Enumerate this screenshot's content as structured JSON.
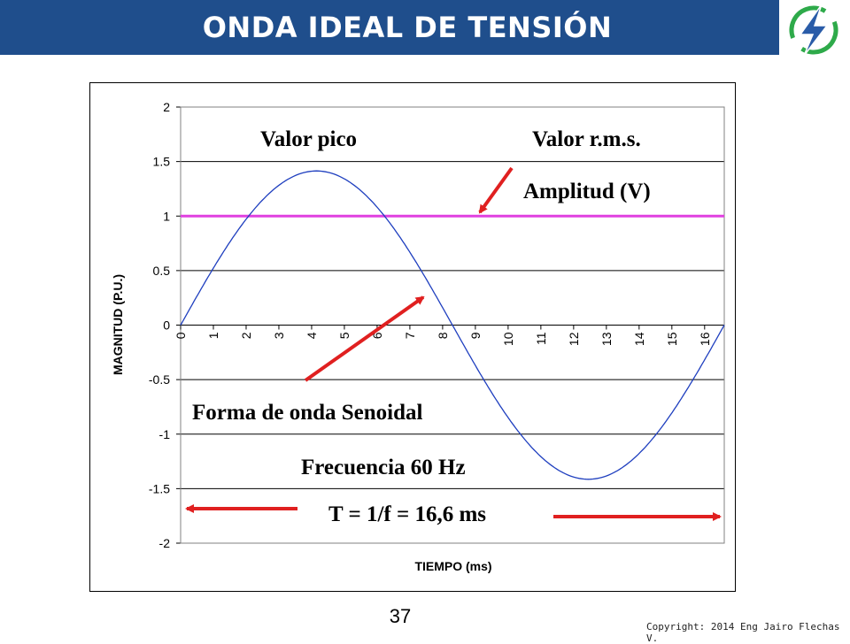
{
  "header": {
    "title": "ONDA IDEAL DE TENSIÓN"
  },
  "logo": {
    "icon": "lightning-bolt-logo",
    "color_ring": "#2eaa4a",
    "color_bolt": "#2a5ca8"
  },
  "footer": {
    "page_number": "37",
    "copyright": "Copyright: 2014 Eng Jairo Flechas V."
  },
  "chart_data": {
    "type": "line",
    "title": "",
    "xlabel": "TIEMPO (ms)",
    "ylabel": "MAGNITUD (P.U.)",
    "xlim": [
      0,
      16.6
    ],
    "ylim": [
      -2,
      2
    ],
    "x_ticks": [
      "0",
      "1",
      "2",
      "3",
      "4",
      "5",
      "6",
      "7",
      "8",
      "9",
      "10",
      "11",
      "12",
      "13",
      "14",
      "15",
      "16"
    ],
    "y_ticks": [
      "2",
      "1.5",
      "1",
      "0.5",
      "0",
      "-0.5",
      "-1",
      "-1.5",
      "-2"
    ],
    "grid": "horizontal",
    "series": [
      {
        "kind": "sine",
        "amplitude": 1.414,
        "frequency_hz": 60,
        "color": "#1f3fbf"
      },
      {
        "kind": "constant",
        "value": 1,
        "color": "#e040e0"
      }
    ],
    "annotations": {
      "valor_pico": "Valor pico",
      "valor_rms": "Valor r.m.s.",
      "amplitud": "Amplitud (V)",
      "forma_onda": "Forma de onda Senoidal",
      "frecuencia": "Frecuencia  60 Hz",
      "periodo": "T = 1/f = 16,6 ms"
    },
    "arrow_color": "#e02020"
  }
}
